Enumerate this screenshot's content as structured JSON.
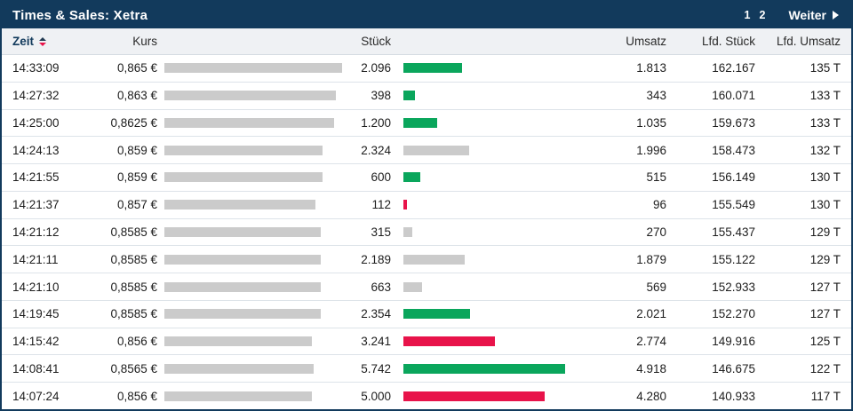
{
  "title_bar": {
    "title": "Times & Sales: Xetra",
    "pages": [
      "1",
      "2"
    ],
    "next_label": "Weiter"
  },
  "columns": {
    "zeit": "Zeit",
    "kurs": "Kurs",
    "stueck": "Stück",
    "umsatz": "Umsatz",
    "lfd_stueck": "Lfd. Stück",
    "lfd_umsatz": "Lfd. Umsatz"
  },
  "colors": {
    "navy": "#123a5c",
    "green": "#0aa65c",
    "red": "#e8134a",
    "bar_gray": "#cbcbcb"
  },
  "bar_scale": {
    "kurs_base": 0.8116,
    "kurs_max": 0.865,
    "kurs_max_width": 200,
    "stueck_max": 5742,
    "stueck_max_width": 182
  },
  "rows": [
    {
      "zeit": "14:33:09",
      "kurs": "0,865 €",
      "kurs_value": 0.865,
      "stueck": "2.096",
      "stueck_value": 2096,
      "direction": "green",
      "umsatz": "1.813",
      "lfd_stueck": "162.167",
      "lfd_umsatz": "135 T"
    },
    {
      "zeit": "14:27:32",
      "kurs": "0,863 €",
      "kurs_value": 0.863,
      "stueck": "398",
      "stueck_value": 398,
      "direction": "green",
      "umsatz": "343",
      "lfd_stueck": "160.071",
      "lfd_umsatz": "133 T"
    },
    {
      "zeit": "14:25:00",
      "kurs": "0,8625 €",
      "kurs_value": 0.8625,
      "stueck": "1.200",
      "stueck_value": 1200,
      "direction": "green",
      "umsatz": "1.035",
      "lfd_stueck": "159.673",
      "lfd_umsatz": "133 T"
    },
    {
      "zeit": "14:24:13",
      "kurs": "0,859 €",
      "kurs_value": 0.859,
      "stueck": "2.324",
      "stueck_value": 2324,
      "direction": "gray",
      "umsatz": "1.996",
      "lfd_stueck": "158.473",
      "lfd_umsatz": "132 T"
    },
    {
      "zeit": "14:21:55",
      "kurs": "0,859 €",
      "kurs_value": 0.859,
      "stueck": "600",
      "stueck_value": 600,
      "direction": "green",
      "umsatz": "515",
      "lfd_stueck": "156.149",
      "lfd_umsatz": "130 T"
    },
    {
      "zeit": "14:21:37",
      "kurs": "0,857 €",
      "kurs_value": 0.857,
      "stueck": "112",
      "stueck_value": 112,
      "direction": "red",
      "umsatz": "96",
      "lfd_stueck": "155.549",
      "lfd_umsatz": "130 T"
    },
    {
      "zeit": "14:21:12",
      "kurs": "0,8585 €",
      "kurs_value": 0.8585,
      "stueck": "315",
      "stueck_value": 315,
      "direction": "gray",
      "umsatz": "270",
      "lfd_stueck": "155.437",
      "lfd_umsatz": "129 T"
    },
    {
      "zeit": "14:21:11",
      "kurs": "0,8585 €",
      "kurs_value": 0.8585,
      "stueck": "2.189",
      "stueck_value": 2189,
      "direction": "gray",
      "umsatz": "1.879",
      "lfd_stueck": "155.122",
      "lfd_umsatz": "129 T"
    },
    {
      "zeit": "14:21:10",
      "kurs": "0,8585 €",
      "kurs_value": 0.8585,
      "stueck": "663",
      "stueck_value": 663,
      "direction": "gray",
      "umsatz": "569",
      "lfd_stueck": "152.933",
      "lfd_umsatz": "127 T"
    },
    {
      "zeit": "14:19:45",
      "kurs": "0,8585 €",
      "kurs_value": 0.8585,
      "stueck": "2.354",
      "stueck_value": 2354,
      "direction": "green",
      "umsatz": "2.021",
      "lfd_stueck": "152.270",
      "lfd_umsatz": "127 T"
    },
    {
      "zeit": "14:15:42",
      "kurs": "0,856 €",
      "kurs_value": 0.856,
      "stueck": "3.241",
      "stueck_value": 3241,
      "direction": "red",
      "umsatz": "2.774",
      "lfd_stueck": "149.916",
      "lfd_umsatz": "125 T"
    },
    {
      "zeit": "14:08:41",
      "kurs": "0,8565 €",
      "kurs_value": 0.8565,
      "stueck": "5.742",
      "stueck_value": 5742,
      "direction": "green",
      "umsatz": "4.918",
      "lfd_stueck": "146.675",
      "lfd_umsatz": "122 T"
    },
    {
      "zeit": "14:07:24",
      "kurs": "0,856 €",
      "kurs_value": 0.856,
      "stueck": "5.000",
      "stueck_value": 5000,
      "direction": "red",
      "umsatz": "4.280",
      "lfd_stueck": "140.933",
      "lfd_umsatz": "117 T"
    }
  ]
}
